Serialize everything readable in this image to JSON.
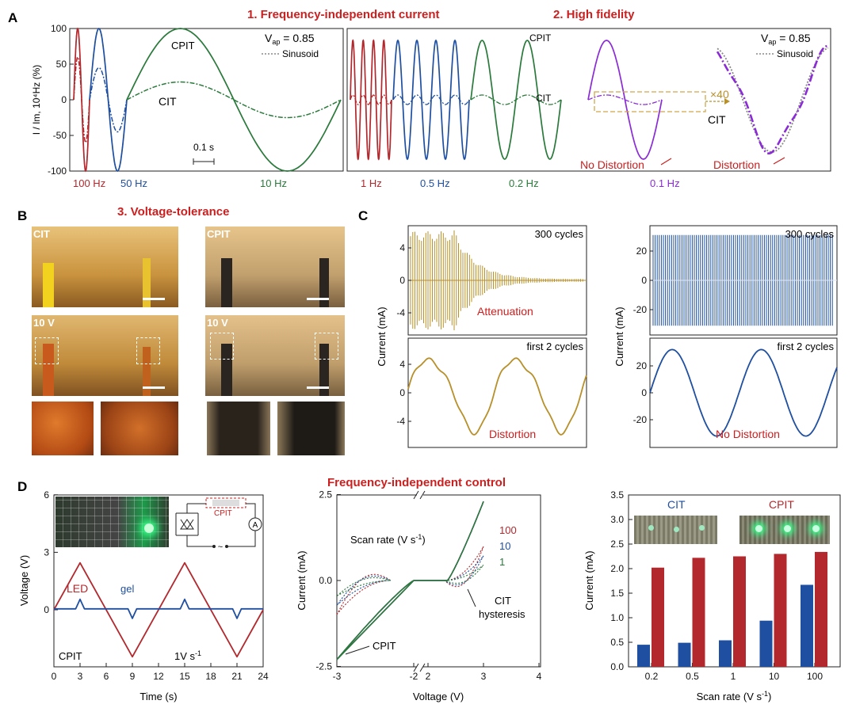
{
  "panel_labels": {
    "a": "A",
    "b": "B",
    "c": "C",
    "d": "D"
  },
  "headings": {
    "freq_indep": "1. Frequency-independent current",
    "high_fidelity": "2. High fidelity",
    "voltage_tolerance": "3. Voltage-tolerance",
    "freq_control": "Frequency-independent control"
  },
  "colors": {
    "red": "#b3282d",
    "blue": "#1f4fa0",
    "green": "#2a7a3b",
    "purple": "#8a2bd6",
    "gold": "#b8902a",
    "heading": "#cc1f1f"
  },
  "photos": {
    "labels": {
      "cit": "CIT",
      "cpit": "CPIT",
      "ten_v": "10 V"
    },
    "cit_tile": "#c9933e",
    "cpit_tile": "#c2a06e"
  },
  "chart_data": [
    {
      "id": "A-left",
      "type": "line",
      "ylabel": "I / Im, 10⁴Hz (%)",
      "ylim": [
        -100,
        100
      ],
      "yticks": [
        "100",
        "50",
        "0",
        "-50",
        "-100"
      ],
      "series": [
        {
          "name": "CPIT",
          "segments": [
            {
              "freq": "100 Hz",
              "amp": 100
            },
            {
              "freq": "50 Hz",
              "amp": 100
            },
            {
              "freq": "10 Hz",
              "amp": 100
            }
          ]
        },
        {
          "name": "CIT",
          "segments": [
            {
              "freq": "100 Hz",
              "amp": 60
            },
            {
              "freq": "50 Hz",
              "amp": 45
            },
            {
              "freq": "10 Hz",
              "amp": 25
            }
          ]
        },
        {
          "name": "Sinusoid",
          "style": "dotted"
        }
      ],
      "freq_labels": [
        "100 Hz",
        "50 Hz",
        "10 Hz"
      ],
      "annotations": {
        "cpit": "CPIT",
        "cit": "CIT",
        "vap": "V",
        "vap_sub": "ap",
        "vap_val": " = 0.85",
        "legend": "Sinusoid",
        "scale": "0.1 s"
      }
    },
    {
      "id": "A-right",
      "type": "line",
      "freq_labels": [
        "1 Hz",
        "0.5 Hz",
        "0.2 Hz",
        "0.1 Hz"
      ],
      "annotations": {
        "cpit": "CPIT",
        "cit": "CIT",
        "cit2": "CIT",
        "x40": "×40",
        "no_dist": "No Distortion",
        "dist": "Distortion",
        "vap": "V",
        "vap_sub": "ap",
        "vap_val": " = 0.85",
        "legend": "Sinusoid"
      }
    },
    {
      "id": "C-left-top",
      "type": "line",
      "ylabel": "Current (mA)",
      "yticks": [
        "4",
        "0",
        "-4"
      ],
      "ylim": [
        -6,
        6
      ],
      "title": "300 cycles",
      "annotation": "Attenuation",
      "series": [
        {
          "name": "CIT",
          "envelope": {
            "start": 6,
            "end": 0.2,
            "cycles": 300
          }
        }
      ]
    },
    {
      "id": "C-left-bottom",
      "type": "line",
      "yticks": [
        "4",
        "0",
        "-4"
      ],
      "ylim": [
        -6,
        6
      ],
      "title": "first 2 cycles",
      "annotation": "Distortion"
    },
    {
      "id": "C-right-top",
      "type": "line",
      "ylabel": "Current (mA)",
      "yticks": [
        "20",
        "0",
        "-20"
      ],
      "ylim": [
        -25,
        25
      ],
      "title": "300 cycles",
      "series": [
        {
          "name": "CPIT",
          "amp": 22
        }
      ]
    },
    {
      "id": "C-right-bottom",
      "type": "line",
      "yticks": [
        "20",
        "0",
        "-20"
      ],
      "ylim": [
        -25,
        25
      ],
      "title": "first 2 cycles",
      "annotation": "No Distortion"
    },
    {
      "id": "D-left",
      "type": "line",
      "xlabel": "Time (s)",
      "ylabel": "Voltage (V)",
      "xlim": [
        0,
        24
      ],
      "ylim": [
        -3,
        6
      ],
      "xticks": [
        "0",
        "3",
        "6",
        "9",
        "12",
        "15",
        "18",
        "21",
        "24"
      ],
      "yticks": [
        "6",
        "3",
        "0"
      ],
      "series": [
        {
          "name": "LED",
          "points": [
            [
              0,
              0
            ],
            [
              3,
              2.45
            ],
            [
              9,
              -2.45
            ],
            [
              15,
              2.45
            ],
            [
              21,
              -2.45
            ],
            [
              24,
              0
            ]
          ]
        },
        {
          "name": "gel",
          "points": [
            [
              0,
              0.05
            ],
            [
              2.5,
              0.05
            ],
            [
              3,
              0.55
            ],
            [
              3.5,
              0.05
            ],
            [
              8.5,
              0.05
            ],
            [
              9,
              -0.45
            ],
            [
              9.5,
              0.05
            ],
            [
              14.5,
              0.05
            ],
            [
              15,
              0.55
            ],
            [
              15.5,
              0.05
            ],
            [
              20.5,
              0.05
            ],
            [
              21,
              -0.45
            ],
            [
              21.5,
              0.05
            ],
            [
              24,
              0.05
            ]
          ]
        }
      ],
      "annotations": {
        "led": "LED",
        "gel": "gel",
        "cpit": "CPIT",
        "rate": "1V s",
        "rate_sup": "-1",
        "inset_cpit": "CPIT",
        "meter": "A",
        "tilde": "~"
      }
    },
    {
      "id": "D-mid",
      "type": "line",
      "xlabel": "Voltage (V)",
      "ylabel": "Current (mA)",
      "xticks": [
        "-3",
        "-2",
        "2",
        "3",
        "4"
      ],
      "yticks": [
        "2.5",
        "0.0",
        "-2.5"
      ],
      "ylim": [
        -2.5,
        2.5
      ],
      "series": [
        {
          "name": "100",
          "imax": 2.3
        },
        {
          "name": "10",
          "imax": 2.3
        },
        {
          "name": "1",
          "imax": 2.3
        }
      ],
      "annotations": {
        "scan": "Scan rate (V s",
        "scan_sup": "-1",
        "scan_end": ")",
        "cit": "CIT",
        "hyst": "hysteresis",
        "cpit": "CPIT"
      }
    },
    {
      "id": "D-right",
      "type": "bar",
      "xlabel": "Scan rate (V s",
      "xlabel_sup": "-1",
      "xlabel_end": ")",
      "ylabel": "Current (mA)",
      "categories": [
        "0.2",
        "0.5",
        "1",
        "10",
        "100"
      ],
      "ylim": [
        0,
        3.5
      ],
      "yticks": [
        "0.0",
        "0.5",
        "1.0",
        "1.5",
        "2.0",
        "2.5",
        "3.0",
        "3.5"
      ],
      "series": [
        {
          "name": "CIT",
          "values": [
            0.45,
            0.49,
            0.54,
            0.94,
            1.67
          ]
        },
        {
          "name": "CPIT",
          "values": [
            2.02,
            2.22,
            2.25,
            2.3,
            2.34
          ]
        }
      ]
    }
  ]
}
